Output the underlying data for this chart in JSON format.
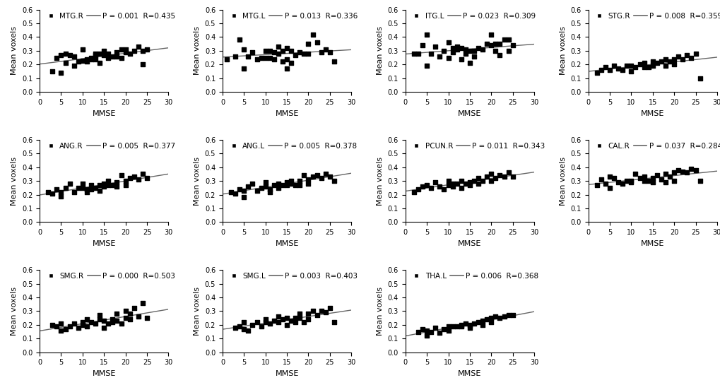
{
  "subplots": [
    {
      "label": "MTG.R",
      "p_val": "0.001",
      "r_val": "0.435",
      "x": [
        3,
        4,
        5,
        5,
        6,
        6,
        7,
        8,
        8,
        9,
        10,
        10,
        11,
        11,
        12,
        12,
        13,
        13,
        13,
        14,
        14,
        15,
        15,
        16,
        16,
        17,
        18,
        18,
        19,
        19,
        20,
        20,
        21,
        22,
        23,
        24,
        24,
        25
      ],
      "y": [
        0.15,
        0.25,
        0.27,
        0.14,
        0.21,
        0.28,
        0.27,
        0.19,
        0.26,
        0.22,
        0.23,
        0.31,
        0.24,
        0.22,
        0.24,
        0.25,
        0.28,
        0.27,
        0.24,
        0.21,
        0.28,
        0.27,
        0.3,
        0.25,
        0.28,
        0.26,
        0.29,
        0.26,
        0.31,
        0.25,
        0.29,
        0.31,
        0.28,
        0.3,
        0.33,
        0.3,
        0.2,
        0.31
      ]
    },
    {
      "label": "MTG.L",
      "p_val": "0.013",
      "r_val": "0.336",
      "x": [
        1,
        3,
        4,
        5,
        5,
        6,
        7,
        8,
        9,
        10,
        10,
        11,
        11,
        12,
        12,
        13,
        13,
        14,
        14,
        15,
        15,
        15,
        16,
        16,
        17,
        18,
        19,
        20,
        20,
        21,
        22,
        23,
        24,
        25,
        26
      ],
      "y": [
        0.24,
        0.26,
        0.38,
        0.31,
        0.17,
        0.26,
        0.29,
        0.24,
        0.25,
        0.3,
        0.25,
        0.3,
        0.25,
        0.29,
        0.24,
        0.33,
        0.28,
        0.3,
        0.22,
        0.17,
        0.32,
        0.24,
        0.3,
        0.21,
        0.27,
        0.29,
        0.28,
        0.35,
        0.28,
        0.42,
        0.36,
        0.29,
        0.31,
        0.29,
        0.22
      ]
    },
    {
      "label": "ITG.L",
      "p_val": "0.023",
      "r_val": "0.309",
      "x": [
        2,
        3,
        4,
        5,
        5,
        6,
        7,
        8,
        9,
        10,
        10,
        11,
        11,
        12,
        12,
        13,
        13,
        14,
        14,
        15,
        15,
        16,
        16,
        17,
        18,
        19,
        20,
        20,
        21,
        21,
        22,
        22,
        23,
        24,
        24,
        25
      ],
      "y": [
        0.28,
        0.28,
        0.34,
        0.42,
        0.19,
        0.28,
        0.33,
        0.26,
        0.3,
        0.36,
        0.25,
        0.32,
        0.29,
        0.33,
        0.31,
        0.32,
        0.24,
        0.31,
        0.28,
        0.21,
        0.3,
        0.3,
        0.26,
        0.32,
        0.31,
        0.35,
        0.34,
        0.42,
        0.35,
        0.3,
        0.35,
        0.27,
        0.38,
        0.38,
        0.3,
        0.34
      ]
    },
    {
      "label": "STG.R",
      "p_val": "0.008",
      "r_val": "0.359",
      "x": [
        2,
        3,
        4,
        5,
        6,
        7,
        8,
        9,
        10,
        10,
        11,
        12,
        13,
        13,
        14,
        15,
        15,
        16,
        17,
        18,
        18,
        19,
        20,
        20,
        21,
        22,
        23,
        24,
        25,
        26
      ],
      "y": [
        0.14,
        0.16,
        0.18,
        0.16,
        0.19,
        0.17,
        0.16,
        0.19,
        0.19,
        0.15,
        0.18,
        0.2,
        0.18,
        0.21,
        0.18,
        0.22,
        0.19,
        0.21,
        0.22,
        0.24,
        0.19,
        0.22,
        0.24,
        0.2,
        0.26,
        0.24,
        0.27,
        0.25,
        0.28,
        0.1
      ]
    },
    {
      "label": "ANG.R",
      "p_val": "0.005",
      "r_val": "0.377",
      "x": [
        2,
        3,
        4,
        5,
        5,
        6,
        7,
        8,
        9,
        10,
        10,
        11,
        11,
        12,
        12,
        13,
        14,
        14,
        15,
        15,
        16,
        16,
        17,
        18,
        18,
        19,
        20,
        20,
        21,
        22,
        23,
        24,
        25
      ],
      "y": [
        0.22,
        0.21,
        0.24,
        0.22,
        0.19,
        0.25,
        0.28,
        0.22,
        0.25,
        0.25,
        0.28,
        0.24,
        0.22,
        0.27,
        0.24,
        0.25,
        0.23,
        0.27,
        0.26,
        0.28,
        0.27,
        0.3,
        0.27,
        0.29,
        0.26,
        0.34,
        0.3,
        0.27,
        0.32,
        0.33,
        0.31,
        0.35,
        0.32
      ]
    },
    {
      "label": "ANG.L",
      "p_val": "0.005",
      "r_val": "0.378",
      "x": [
        2,
        3,
        4,
        5,
        5,
        6,
        7,
        8,
        9,
        10,
        10,
        11,
        11,
        12,
        13,
        13,
        14,
        15,
        15,
        16,
        16,
        17,
        18,
        18,
        19,
        20,
        20,
        21,
        22,
        23,
        24,
        25,
        26
      ],
      "y": [
        0.22,
        0.21,
        0.24,
        0.23,
        0.18,
        0.26,
        0.28,
        0.23,
        0.25,
        0.26,
        0.29,
        0.24,
        0.22,
        0.27,
        0.25,
        0.28,
        0.27,
        0.27,
        0.29,
        0.28,
        0.3,
        0.27,
        0.3,
        0.27,
        0.34,
        0.31,
        0.28,
        0.33,
        0.34,
        0.32,
        0.35,
        0.33,
        0.3
      ]
    },
    {
      "label": "PCUN.R",
      "p_val": "0.011",
      "r_val": "0.343",
      "x": [
        2,
        3,
        4,
        5,
        6,
        7,
        8,
        9,
        10,
        10,
        11,
        11,
        12,
        13,
        13,
        14,
        15,
        15,
        16,
        17,
        17,
        18,
        19,
        20,
        20,
        21,
        22,
        23,
        24,
        25
      ],
      "y": [
        0.22,
        0.24,
        0.26,
        0.27,
        0.25,
        0.29,
        0.26,
        0.24,
        0.27,
        0.3,
        0.26,
        0.28,
        0.28,
        0.25,
        0.3,
        0.28,
        0.29,
        0.27,
        0.3,
        0.28,
        0.32,
        0.3,
        0.33,
        0.3,
        0.35,
        0.32,
        0.34,
        0.33,
        0.36,
        0.33
      ]
    },
    {
      "label": "CAL.R",
      "p_val": "0.037",
      "r_val": "0.284",
      "x": [
        2,
        3,
        4,
        5,
        5,
        6,
        7,
        8,
        9,
        10,
        10,
        11,
        12,
        13,
        13,
        14,
        15,
        15,
        16,
        17,
        18,
        18,
        19,
        20,
        20,
        21,
        22,
        23,
        24,
        25,
        26
      ],
      "y": [
        0.27,
        0.31,
        0.28,
        0.33,
        0.25,
        0.32,
        0.29,
        0.28,
        0.3,
        0.3,
        0.29,
        0.35,
        0.32,
        0.3,
        0.33,
        0.3,
        0.32,
        0.29,
        0.34,
        0.31,
        0.35,
        0.29,
        0.33,
        0.36,
        0.3,
        0.38,
        0.37,
        0.36,
        0.39,
        0.38,
        0.3
      ]
    },
    {
      "label": "SMG.R",
      "p_val": "0.000",
      "r_val": "0.503",
      "x": [
        3,
        4,
        5,
        5,
        6,
        7,
        8,
        9,
        10,
        10,
        11,
        11,
        12,
        13,
        14,
        14,
        15,
        15,
        16,
        17,
        17,
        18,
        18,
        19,
        20,
        20,
        21,
        21,
        22,
        23,
        24,
        25
      ],
      "y": [
        0.2,
        0.19,
        0.16,
        0.21,
        0.17,
        0.19,
        0.21,
        0.18,
        0.2,
        0.22,
        0.24,
        0.19,
        0.22,
        0.21,
        0.24,
        0.27,
        0.23,
        0.18,
        0.21,
        0.24,
        0.22,
        0.23,
        0.28,
        0.21,
        0.25,
        0.3,
        0.28,
        0.24,
        0.32,
        0.26,
        0.36,
        0.25
      ]
    },
    {
      "label": "SMG.L",
      "p_val": "0.003",
      "r_val": "0.403",
      "x": [
        3,
        4,
        5,
        5,
        6,
        7,
        8,
        9,
        10,
        10,
        11,
        12,
        13,
        13,
        14,
        15,
        15,
        16,
        17,
        17,
        18,
        18,
        19,
        20,
        20,
        21,
        22,
        23,
        24,
        25,
        26
      ],
      "y": [
        0.18,
        0.19,
        0.17,
        0.22,
        0.16,
        0.2,
        0.22,
        0.19,
        0.22,
        0.24,
        0.21,
        0.23,
        0.22,
        0.26,
        0.24,
        0.25,
        0.2,
        0.23,
        0.25,
        0.22,
        0.25,
        0.28,
        0.22,
        0.28,
        0.24,
        0.3,
        0.27,
        0.3,
        0.29,
        0.32,
        0.22
      ]
    },
    {
      "label": "THA.L",
      "p_val": "0.006",
      "r_val": "0.368",
      "x": [
        3,
        4,
        5,
        5,
        6,
        7,
        8,
        9,
        10,
        10,
        11,
        12,
        13,
        13,
        14,
        15,
        15,
        16,
        17,
        18,
        18,
        19,
        20,
        20,
        21,
        22,
        23,
        24,
        25
      ],
      "y": [
        0.15,
        0.17,
        0.16,
        0.12,
        0.15,
        0.18,
        0.14,
        0.17,
        0.19,
        0.16,
        0.19,
        0.19,
        0.2,
        0.19,
        0.21,
        0.2,
        0.18,
        0.21,
        0.22,
        0.23,
        0.2,
        0.24,
        0.25,
        0.22,
        0.26,
        0.25,
        0.26,
        0.27,
        0.27
      ]
    }
  ],
  "xlabel": "MMSE",
  "ylabel": "Mean voxels",
  "xlim": [
    0,
    30
  ],
  "xticks": [
    0,
    5,
    10,
    15,
    20,
    25,
    30
  ],
  "ylim": [
    0.0,
    0.6
  ],
  "yticks": [
    0.0,
    0.1,
    0.2,
    0.3,
    0.4,
    0.5,
    0.6
  ],
  "marker": "s",
  "marker_size": 20,
  "marker_color": "#000000",
  "line_color": "#666666",
  "bg_color": "#ffffff",
  "legend_fontsize": 7.5,
  "tick_fontsize": 7.0,
  "axis_label_fontsize": 8.0
}
